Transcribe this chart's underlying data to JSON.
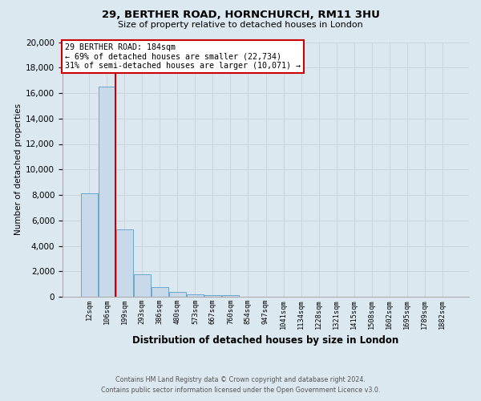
{
  "title": "29, BERTHER ROAD, HORNCHURCH, RM11 3HU",
  "subtitle": "Size of property relative to detached houses in London",
  "bar_labels": [
    "12sqm",
    "106sqm",
    "199sqm",
    "293sqm",
    "386sqm",
    "480sqm",
    "573sqm",
    "667sqm",
    "760sqm",
    "854sqm",
    "947sqm",
    "1041sqm",
    "1134sqm",
    "1228sqm",
    "1321sqm",
    "1415sqm",
    "1508sqm",
    "1602sqm",
    "1695sqm",
    "1789sqm",
    "1882sqm"
  ],
  "bar_values": [
    8100,
    16500,
    5300,
    1750,
    780,
    350,
    200,
    130,
    100,
    0,
    0,
    0,
    0,
    0,
    0,
    0,
    0,
    0,
    0,
    0,
    0
  ],
  "bar_color": "#c8d9ea",
  "bar_edge_color": "#5b9dc9",
  "red_line_color": "#cc0000",
  "annotation_title": "29 BERTHER ROAD: 184sqm",
  "annotation_line1": "← 69% of detached houses are smaller (22,734)",
  "annotation_line2": "31% of semi-detached houses are larger (10,071) →",
  "annotation_box_color": "#ffffff",
  "annotation_box_edge": "#cc0000",
  "xlabel": "Distribution of detached houses by size in London",
  "ylabel": "Number of detached properties",
  "ylim": [
    0,
    20000
  ],
  "yticks": [
    0,
    2000,
    4000,
    6000,
    8000,
    10000,
    12000,
    14000,
    16000,
    18000,
    20000
  ],
  "footer_line1": "Contains HM Land Registry data © Crown copyright and database right 2024.",
  "footer_line2": "Contains public sector information licensed under the Open Government Licence v3.0.",
  "grid_color": "#c8d4e0",
  "bg_color": "#dce8f0",
  "plot_bg_color": "#dce8f0"
}
